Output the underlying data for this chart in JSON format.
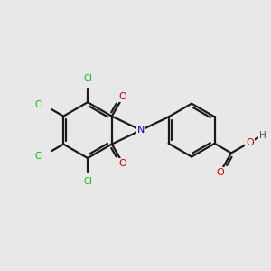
{
  "background_color": "#e8e8e8",
  "bond_color": "#1a1a1a",
  "atom_colors": {
    "Cl": "#00bb00",
    "N": "#0000cc",
    "O": "#cc0000",
    "H": "#555555",
    "C": "#1a1a1a"
  }
}
